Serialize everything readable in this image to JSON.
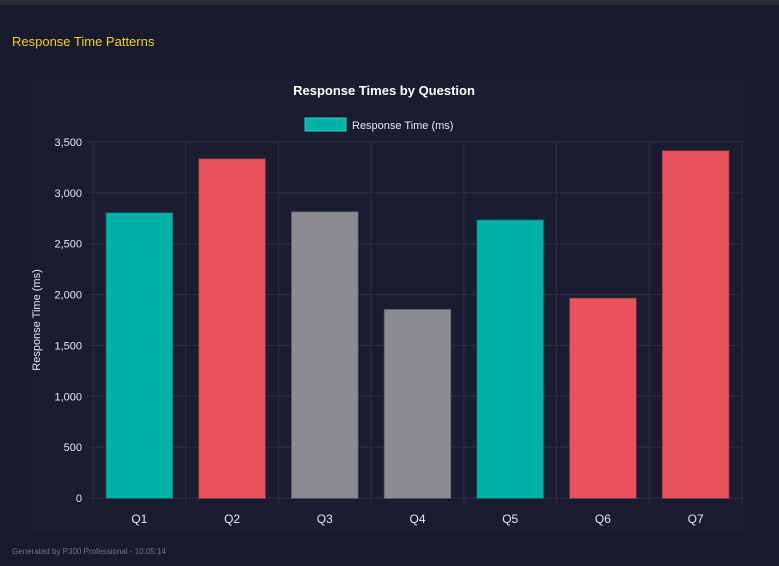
{
  "header": {
    "title": "Response Time Patterns"
  },
  "footer": {
    "text": "Generated by P300 Professional - 10:05:14"
  },
  "chart_data": {
    "type": "bar",
    "title": "Response Times by Question",
    "legend": {
      "label": "Response Time (ms)",
      "color": "#00b3a6",
      "placement": "top"
    },
    "xlabel": "",
    "ylabel": "Response Time (ms)",
    "ylim": [
      0,
      3500
    ],
    "yticks": [
      0,
      500,
      1000,
      1500,
      2000,
      2500,
      3000,
      3500
    ],
    "ytick_labels": [
      "0",
      "500",
      "1,000",
      "1,500",
      "2,000",
      "2,500",
      "3,000",
      "3,500"
    ],
    "grid": true,
    "categories": [
      "Q1",
      "Q2",
      "Q3",
      "Q4",
      "Q5",
      "Q6",
      "Q7"
    ],
    "values": [
      2800,
      3330,
      2810,
      1850,
      2730,
      1960,
      3410
    ],
    "bar_colors": [
      "#00b3a6",
      "#e8525c",
      "#8c8c90",
      "#8c8c90",
      "#00b3a6",
      "#e8525c",
      "#e8525c"
    ]
  }
}
